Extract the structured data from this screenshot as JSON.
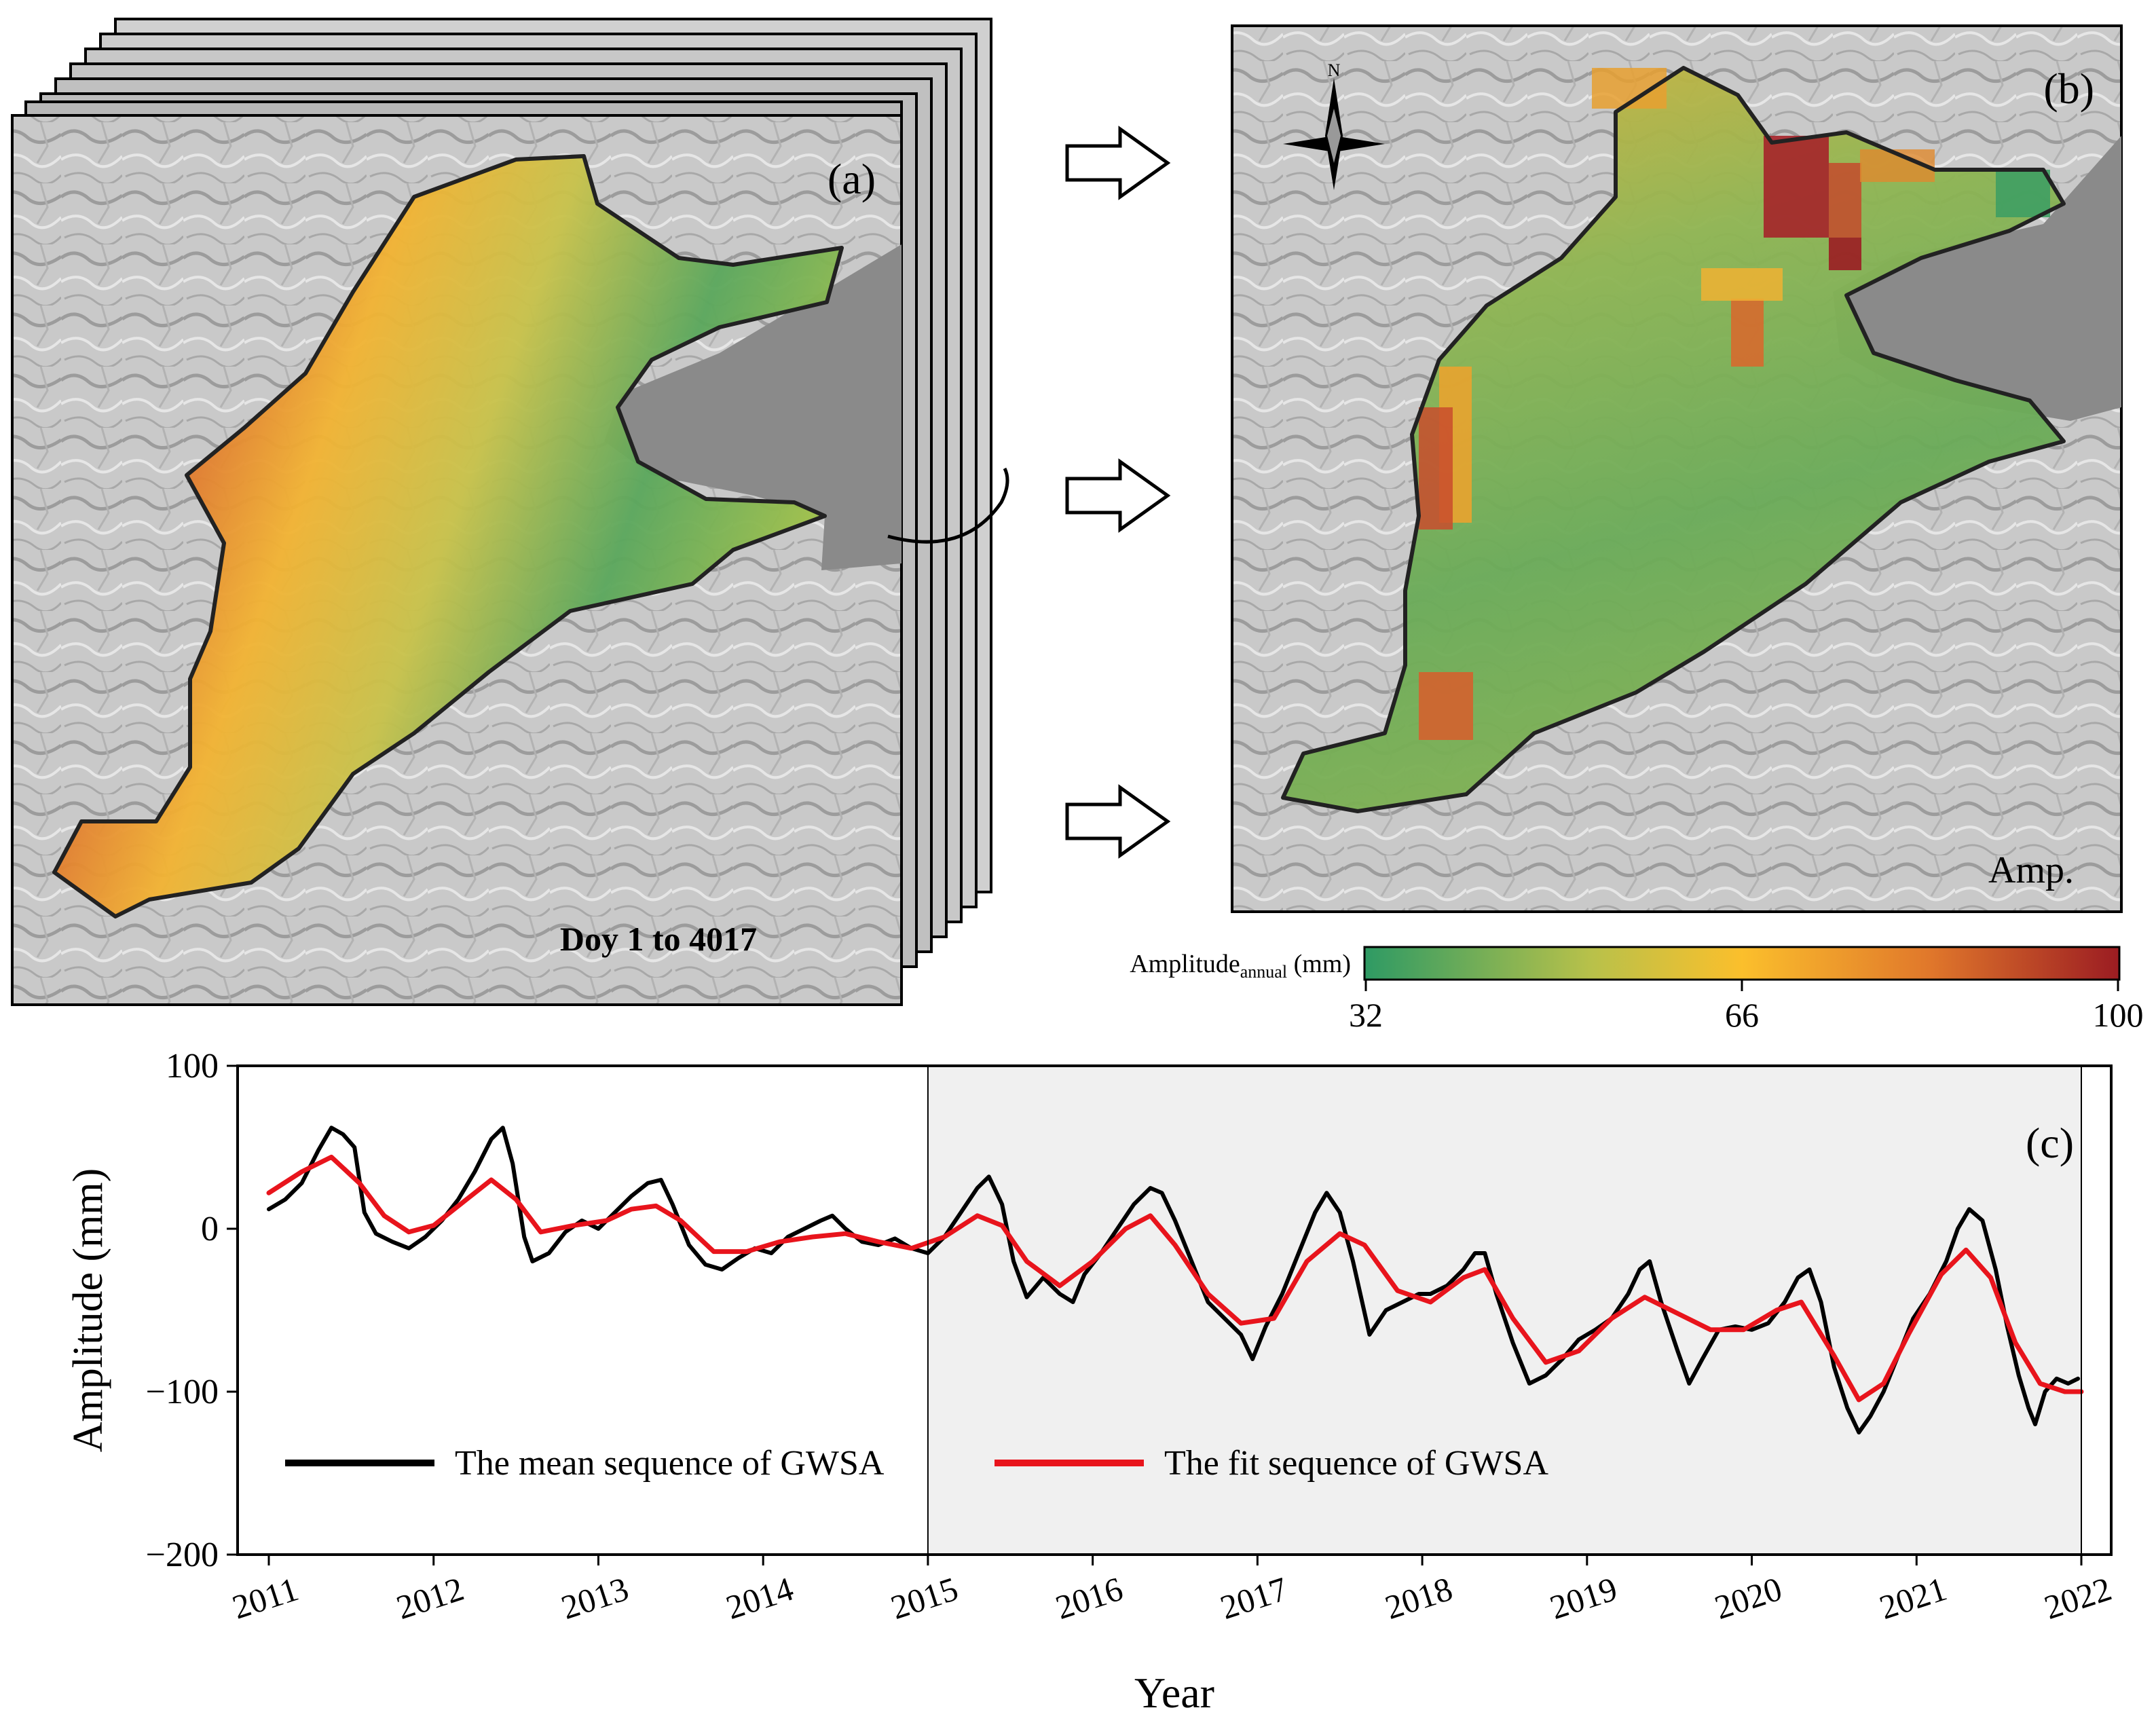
{
  "panel_a": {
    "label": "(a)",
    "caption": "Doy 1 to 4017"
  },
  "panel_b": {
    "label": "(b)",
    "corner_text": "Amp.",
    "north_label": "N"
  },
  "colorbar": {
    "title_main": "Amplitude",
    "title_sub": "annual",
    "title_unit": " (mm)",
    "min_label": "32",
    "mid_label": "66",
    "max_label": "100",
    "colors": [
      "#2e9a64",
      "#b8c14a",
      "#fbbf2c",
      "#e0772b",
      "#9b1c22"
    ]
  },
  "chart_data": {
    "type": "line",
    "panel_label": "(c)",
    "xlabel": "Year",
    "ylabel": "Amplitude (mm)",
    "xlim": [
      2011,
      2022
    ],
    "ylim": [
      -200,
      100
    ],
    "xticks": [
      "2011",
      "2012",
      "2013",
      "2014",
      "2015",
      "2016",
      "2017",
      "2018",
      "2019",
      "2020",
      "2021",
      "2022"
    ],
    "yticks": [
      "100",
      "0",
      "−100",
      "−200"
    ],
    "shaded_range": [
      2015,
      2022
    ],
    "series": [
      {
        "name": "The mean sequence of GWSA",
        "color": "#000000",
        "points": [
          [
            2011.0,
            12
          ],
          [
            2011.1,
            18
          ],
          [
            2011.2,
            28
          ],
          [
            2011.3,
            48
          ],
          [
            2011.38,
            62
          ],
          [
            2011.45,
            58
          ],
          [
            2011.52,
            50
          ],
          [
            2011.58,
            10
          ],
          [
            2011.65,
            -3
          ],
          [
            2011.75,
            -8
          ],
          [
            2011.85,
            -12
          ],
          [
            2011.95,
            -5
          ],
          [
            2012.05,
            5
          ],
          [
            2012.15,
            18
          ],
          [
            2012.25,
            35
          ],
          [
            2012.35,
            55
          ],
          [
            2012.42,
            62
          ],
          [
            2012.48,
            40
          ],
          [
            2012.55,
            -5
          ],
          [
            2012.6,
            -20
          ],
          [
            2012.7,
            -15
          ],
          [
            2012.8,
            -2
          ],
          [
            2012.9,
            5
          ],
          [
            2013.0,
            0
          ],
          [
            2013.1,
            10
          ],
          [
            2013.2,
            20
          ],
          [
            2013.3,
            28
          ],
          [
            2013.38,
            30
          ],
          [
            2013.45,
            15
          ],
          [
            2013.55,
            -10
          ],
          [
            2013.65,
            -22
          ],
          [
            2013.75,
            -25
          ],
          [
            2013.85,
            -18
          ],
          [
            2013.95,
            -12
          ],
          [
            2014.05,
            -15
          ],
          [
            2014.15,
            -5
          ],
          [
            2014.25,
            0
          ],
          [
            2014.35,
            5
          ],
          [
            2014.42,
            8
          ],
          [
            2014.5,
            0
          ],
          [
            2014.6,
            -8
          ],
          [
            2014.7,
            -10
          ],
          [
            2014.8,
            -6
          ],
          [
            2014.9,
            -12
          ],
          [
            2015.0,
            -15
          ],
          [
            2015.1,
            -5
          ],
          [
            2015.2,
            10
          ],
          [
            2015.3,
            25
          ],
          [
            2015.37,
            32
          ],
          [
            2015.45,
            15
          ],
          [
            2015.52,
            -20
          ],
          [
            2015.6,
            -42
          ],
          [
            2015.7,
            -30
          ],
          [
            2015.8,
            -40
          ],
          [
            2015.88,
            -45
          ],
          [
            2015.95,
            -28
          ],
          [
            2016.05,
            -15
          ],
          [
            2016.15,
            0
          ],
          [
            2016.25,
            15
          ],
          [
            2016.35,
            25
          ],
          [
            2016.42,
            22
          ],
          [
            2016.5,
            5
          ],
          [
            2016.6,
            -20
          ],
          [
            2016.7,
            -45
          ],
          [
            2016.8,
            -55
          ],
          [
            2016.9,
            -65
          ],
          [
            2016.97,
            -80
          ],
          [
            2017.05,
            -60
          ],
          [
            2017.15,
            -40
          ],
          [
            2017.25,
            -15
          ],
          [
            2017.35,
            10
          ],
          [
            2017.42,
            22
          ],
          [
            2017.5,
            10
          ],
          [
            2017.58,
            -20
          ],
          [
            2017.68,
            -65
          ],
          [
            2017.78,
            -50
          ],
          [
            2017.88,
            -45
          ],
          [
            2017.98,
            -40
          ],
          [
            2018.05,
            -40
          ],
          [
            2018.15,
            -35
          ],
          [
            2018.25,
            -25
          ],
          [
            2018.32,
            -15
          ],
          [
            2018.38,
            -15
          ],
          [
            2018.45,
            -40
          ],
          [
            2018.55,
            -70
          ],
          [
            2018.65,
            -95
          ],
          [
            2018.75,
            -90
          ],
          [
            2018.85,
            -80
          ],
          [
            2018.95,
            -68
          ],
          [
            2019.05,
            -62
          ],
          [
            2019.15,
            -55
          ],
          [
            2019.25,
            -40
          ],
          [
            2019.32,
            -25
          ],
          [
            2019.38,
            -20
          ],
          [
            2019.45,
            -45
          ],
          [
            2019.55,
            -75
          ],
          [
            2019.62,
            -95
          ],
          [
            2019.7,
            -80
          ],
          [
            2019.8,
            -62
          ],
          [
            2019.9,
            -60
          ],
          [
            2020.0,
            -62
          ],
          [
            2020.1,
            -58
          ],
          [
            2020.2,
            -45
          ],
          [
            2020.28,
            -30
          ],
          [
            2020.35,
            -25
          ],
          [
            2020.42,
            -45
          ],
          [
            2020.5,
            -85
          ],
          [
            2020.58,
            -110
          ],
          [
            2020.65,
            -125
          ],
          [
            2020.72,
            -115
          ],
          [
            2020.8,
            -100
          ],
          [
            2020.88,
            -80
          ],
          [
            2020.98,
            -55
          ],
          [
            2021.08,
            -40
          ],
          [
            2021.18,
            -20
          ],
          [
            2021.25,
            0
          ],
          [
            2021.32,
            12
          ],
          [
            2021.4,
            5
          ],
          [
            2021.48,
            -25
          ],
          [
            2021.55,
            -60
          ],
          [
            2021.62,
            -90
          ],
          [
            2021.68,
            -110
          ],
          [
            2021.72,
            -120
          ],
          [
            2021.78,
            -100
          ],
          [
            2021.85,
            -92
          ],
          [
            2021.92,
            -95
          ],
          [
            2021.98,
            -92
          ]
        ]
      },
      {
        "name": "The fit sequence of GWSA",
        "color": "#e8141c",
        "points": [
          [
            2011.0,
            22
          ],
          [
            2011.2,
            35
          ],
          [
            2011.38,
            44
          ],
          [
            2011.55,
            28
          ],
          [
            2011.7,
            8
          ],
          [
            2011.85,
            -2
          ],
          [
            2012.0,
            2
          ],
          [
            2012.2,
            18
          ],
          [
            2012.35,
            30
          ],
          [
            2012.5,
            18
          ],
          [
            2012.65,
            -2
          ],
          [
            2012.85,
            2
          ],
          [
            2013.05,
            5
          ],
          [
            2013.2,
            12
          ],
          [
            2013.35,
            14
          ],
          [
            2013.5,
            5
          ],
          [
            2013.7,
            -14
          ],
          [
            2013.9,
            -14
          ],
          [
            2014.1,
            -8
          ],
          [
            2014.3,
            -5
          ],
          [
            2014.5,
            -3
          ],
          [
            2014.7,
            -8
          ],
          [
            2014.9,
            -12
          ],
          [
            2015.1,
            -5
          ],
          [
            2015.3,
            8
          ],
          [
            2015.45,
            2
          ],
          [
            2015.6,
            -20
          ],
          [
            2015.8,
            -35
          ],
          [
            2016.0,
            -20
          ],
          [
            2016.2,
            0
          ],
          [
            2016.35,
            8
          ],
          [
            2016.5,
            -10
          ],
          [
            2016.7,
            -40
          ],
          [
            2016.9,
            -58
          ],
          [
            2017.1,
            -55
          ],
          [
            2017.3,
            -20
          ],
          [
            2017.5,
            -3
          ],
          [
            2017.65,
            -10
          ],
          [
            2017.85,
            -38
          ],
          [
            2018.05,
            -45
          ],
          [
            2018.25,
            -30
          ],
          [
            2018.38,
            -25
          ],
          [
            2018.55,
            -55
          ],
          [
            2018.75,
            -82
          ],
          [
            2018.95,
            -75
          ],
          [
            2019.15,
            -55
          ],
          [
            2019.35,
            -42
          ],
          [
            2019.55,
            -52
          ],
          [
            2019.75,
            -62
          ],
          [
            2019.95,
            -62
          ],
          [
            2020.15,
            -50
          ],
          [
            2020.3,
            -45
          ],
          [
            2020.5,
            -78
          ],
          [
            2020.65,
            -105
          ],
          [
            2020.8,
            -95
          ],
          [
            2020.95,
            -65
          ],
          [
            2021.15,
            -28
          ],
          [
            2021.3,
            -13
          ],
          [
            2021.45,
            -30
          ],
          [
            2021.6,
            -70
          ],
          [
            2021.75,
            -95
          ],
          [
            2021.9,
            -100
          ],
          [
            2022.0,
            -100
          ]
        ]
      }
    ]
  }
}
